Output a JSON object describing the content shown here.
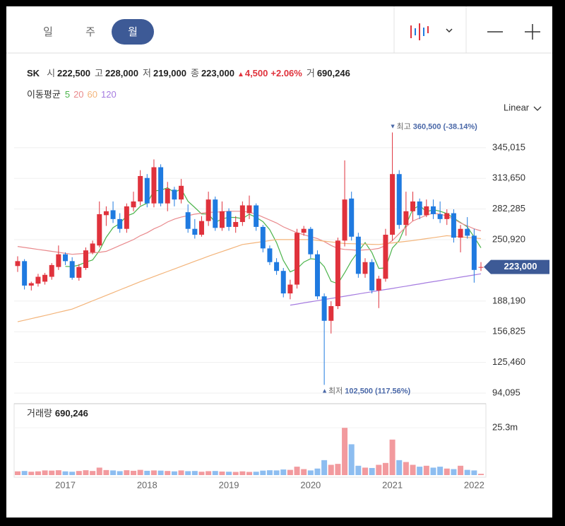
{
  "header": {
    "tabs": [
      "일",
      "주",
      "월"
    ],
    "selected_tab": 2,
    "scale": "Linear"
  },
  "quote": {
    "symbol": "SK",
    "fields": [
      {
        "label": "시",
        "value": "222,500"
      },
      {
        "label": "고",
        "value": "228,000"
      },
      {
        "label": "저",
        "value": "219,000"
      },
      {
        "label": "종",
        "value": "223,000"
      }
    ],
    "change": {
      "arrow": "▲",
      "amount": "4,500",
      "percent": "+2.06%"
    },
    "volume": {
      "label": "거",
      "value": "690,246"
    }
  },
  "ma_legend": {
    "title": "이동평균"
  },
  "chart_data": [
    {
      "type": "candlestick",
      "open": [
        224000,
        229000,
        204000,
        206000,
        208000,
        213000,
        223000,
        236000,
        229000,
        212000,
        222000,
        238000,
        245000,
        276000,
        281000,
        272000,
        262000,
        284000,
        290000,
        314000,
        288000,
        325000,
        288000,
        302000,
        292000,
        279000,
        262000,
        256000,
        270000,
        292000,
        263000,
        280000,
        264000,
        269000,
        278000,
        286000,
        264000,
        242000,
        228000,
        219000,
        196000,
        205000,
        258000,
        262000,
        236000,
        193000,
        168000,
        183000,
        250000,
        293000,
        254000,
        216000,
        228000,
        199000,
        211000,
        256000,
        318000,
        266000,
        280000,
        290000,
        276000,
        285000,
        277000,
        272000,
        278000,
        253000,
        262000,
        255000,
        222500
      ],
      "high": [
        234000,
        231000,
        208000,
        216000,
        217000,
        227000,
        245000,
        238000,
        233000,
        226000,
        243000,
        250000,
        290000,
        285000,
        290000,
        278000,
        288000,
        300000,
        322000,
        318000,
        333000,
        328000,
        310000,
        305000,
        313000,
        287000,
        272000,
        275000,
        300000,
        295000,
        290000,
        283000,
        275000,
        290000,
        296000,
        288000,
        266000,
        245000,
        232000,
        222000,
        210000,
        262000,
        265000,
        264000,
        240000,
        196000,
        188000,
        253000,
        332000,
        300000,
        258000,
        232000,
        231000,
        214000,
        262000,
        360500,
        322000,
        300000,
        300000,
        293000,
        292000,
        292000,
        290000,
        282000,
        282000,
        266000,
        274000,
        262000,
        228000
      ],
      "low": [
        218000,
        200000,
        199000,
        203000,
        205000,
        210000,
        220000,
        225000,
        210000,
        209000,
        220000,
        236000,
        243000,
        265000,
        268000,
        258000,
        258000,
        280000,
        286000,
        284000,
        284000,
        285000,
        280000,
        285000,
        288000,
        258000,
        252000,
        254000,
        265000,
        260000,
        260000,
        260000,
        258000,
        265000,
        272000,
        260000,
        238000,
        225000,
        215000,
        192000,
        190000,
        201000,
        255000,
        232000,
        190000,
        102500,
        155000,
        180000,
        244000,
        250000,
        212000,
        212000,
        196000,
        181000,
        208000,
        250000,
        262000,
        255000,
        270000,
        272000,
        274000,
        272000,
        268000,
        266000,
        248000,
        238000,
        252000,
        207000,
        219000
      ],
      "close": [
        229000,
        204000,
        206500,
        213000,
        215000,
        225000,
        236000,
        229000,
        212000,
        223000,
        240000,
        247000,
        277000,
        280000,
        272000,
        262000,
        285000,
        290000,
        316000,
        288000,
        325000,
        288000,
        303000,
        292000,
        306000,
        262000,
        256000,
        270000,
        292000,
        263000,
        280000,
        264000,
        269000,
        286000,
        286000,
        264000,
        242000,
        228000,
        219000,
        196000,
        205000,
        258000,
        262000,
        236000,
        193000,
        168000,
        183000,
        250000,
        292000,
        254000,
        216000,
        228000,
        199000,
        211000,
        256000,
        318000,
        266000,
        280000,
        290000,
        276000,
        285000,
        277000,
        272000,
        278000,
        253000,
        262000,
        255000,
        220000,
        223000
      ],
      "up_color": "#e0323c",
      "down_color": "#1f7ae0",
      "series": [
        {
          "name": "5",
          "color": "#4cb44c",
          "values": [
            null,
            null,
            null,
            null,
            null,
            null,
            null,
            223600,
            223400,
            225000,
            228000,
            230200,
            239800,
            253400,
            263200,
            267600,
            275200,
            277800,
            285000,
            288200,
            300800,
            301400,
            304000,
            299200,
            302800,
            290200,
            283800,
            277200,
            277200,
            268600,
            272200,
            273800,
            273600,
            272400,
            277000,
            273800,
            269400,
            261200,
            247800,
            229800,
            218000,
            221200,
            228000,
            231400,
            230800,
            223400,
            208400,
            206000,
            217200,
            229400,
            239000,
            248000,
            237800,
            221600,
            222000,
            242400,
            250000,
            266200,
            282000,
            286000,
            279400,
            281600,
            280000,
            277600,
            273000,
            268400,
            264000,
            253600,
            242600
          ]
        },
        {
          "name": "20",
          "color": "#e98a8d",
          "values": [
            244000,
            243000,
            242000,
            241000,
            240000,
            239000,
            238000,
            237000,
            236000,
            236500,
            237000,
            237500,
            238000,
            239000,
            242000,
            245000,
            248000,
            251000,
            255000,
            258000,
            262000,
            265000,
            269000,
            272000,
            274000,
            275500,
            277000,
            278000,
            279000,
            279000,
            279500,
            280000,
            280000,
            280000,
            279000,
            277000,
            274000,
            271000,
            268000,
            264000,
            261000,
            258000,
            256000,
            254000,
            252000,
            249000,
            245000,
            242000,
            241000,
            240500,
            240000,
            240500,
            241000,
            242000,
            245000,
            250000,
            257000,
            264000,
            270000,
            273000,
            276000,
            278000,
            277000,
            275000,
            272000,
            268000,
            265000,
            262000,
            260000
          ]
        },
        {
          "name": "60",
          "color": "#f3b47a",
          "values": [
            167000,
            168600,
            170200,
            171800,
            173400,
            175000,
            176700,
            178300,
            180000,
            182800,
            185600,
            188400,
            191200,
            194000,
            196800,
            199600,
            202400,
            205200,
            208000,
            210600,
            213200,
            215800,
            218400,
            221000,
            223600,
            226200,
            228800,
            231400,
            234000,
            236400,
            238800,
            241200,
            243600,
            246000,
            247000,
            248000,
            249000,
            250000,
            251000,
            251000,
            251000,
            251000,
            251000,
            251000,
            250200,
            249400,
            248600,
            247800,
            247000,
            246800,
            246600,
            246400,
            246200,
            246000,
            246800,
            247600,
            248400,
            249200,
            250000,
            251000,
            252000,
            253000,
            254000,
            255000,
            254400,
            253800,
            253200,
            252600,
            252000
          ]
        },
        {
          "name": "120",
          "color": "#a57be0",
          "values": [
            null,
            null,
            null,
            null,
            null,
            null,
            null,
            null,
            null,
            null,
            null,
            null,
            null,
            null,
            null,
            null,
            null,
            null,
            null,
            null,
            null,
            null,
            null,
            null,
            null,
            null,
            null,
            null,
            null,
            null,
            null,
            null,
            null,
            null,
            null,
            null,
            null,
            null,
            null,
            null,
            184000,
            185100,
            186300,
            187400,
            188600,
            189700,
            190900,
            192000,
            193100,
            194300,
            195400,
            196600,
            197700,
            198900,
            200000,
            201100,
            202300,
            203400,
            204600,
            205700,
            206900,
            208000,
            209100,
            210300,
            211400,
            212600,
            213700,
            214900,
            216000
          ]
        }
      ],
      "ylim": [
        87600,
        376700
      ],
      "yticks": [
        {
          "value": 94095,
          "label": "94,095"
        },
        {
          "value": 125460,
          "label": "125,460"
        },
        {
          "value": 156825,
          "label": "156,825"
        },
        {
          "value": 188190,
          "label": "188,190"
        },
        {
          "value": 250920,
          "label": "250,920"
        },
        {
          "value": 282285,
          "label": "282,285"
        },
        {
          "value": 313650,
          "label": "313,650"
        },
        {
          "value": 345015,
          "label": "345,015"
        }
      ],
      "grid": true,
      "annotations": [
        {
          "marker": "▼",
          "label": "최고",
          "value": 360500,
          "value_label": "360,500",
          "change": "(-38.14%)"
        },
        {
          "marker": "▲",
          "label": "최저",
          "value": 102500,
          "value_label": "102,500",
          "change": "(117.56%)"
        }
      ],
      "last_price": {
        "value": 223000,
        "label": "223,000"
      }
    },
    {
      "type": "bar",
      "title": "거래량",
      "current_label": "690,246",
      "categories": [
        null,
        null,
        null,
        null,
        null,
        null,
        null,
        "2017",
        null,
        null,
        null,
        null,
        null,
        null,
        null,
        null,
        null,
        null,
        null,
        "2018",
        null,
        null,
        null,
        null,
        null,
        null,
        null,
        null,
        null,
        null,
        null,
        "2019",
        null,
        null,
        null,
        null,
        null,
        null,
        null,
        null,
        null,
        null,
        null,
        "2020",
        null,
        null,
        null,
        null,
        null,
        null,
        null,
        null,
        null,
        null,
        null,
        "2021",
        null,
        null,
        null,
        null,
        null,
        null,
        null,
        null,
        null,
        null,
        null,
        "2022",
        null
      ],
      "values": [
        2000000,
        2200000,
        1800000,
        2000000,
        2500000,
        2400000,
        2600000,
        2000000,
        1800000,
        2200000,
        2600000,
        2200000,
        4000000,
        2700000,
        2500000,
        2100000,
        2600000,
        2300000,
        2800000,
        2300000,
        2500000,
        2400000,
        2200000,
        2000000,
        2500000,
        2100000,
        2200000,
        1800000,
        2100000,
        2200000,
        1900000,
        1800000,
        1700000,
        2000000,
        1700000,
        1800000,
        2400000,
        2600000,
        2500000,
        3000000,
        2800000,
        4500000,
        3200000,
        2500000,
        3500000,
        8000000,
        5500000,
        6000000,
        25300000,
        16500000,
        5000000,
        4000000,
        3800000,
        5500000,
        6500000,
        19000000,
        8000000,
        7000000,
        5500000,
        4500000,
        5000000,
        4000000,
        4500000,
        3500000,
        3200000,
        5000000,
        2800000,
        2500000,
        690246
      ],
      "up_color": "#f29a9e",
      "down_color": "#8dbdf0",
      "ylim": [
        0,
        36700000
      ],
      "yticks": [
        {
          "value": 25300000,
          "label": "25.3m"
        }
      ]
    }
  ]
}
